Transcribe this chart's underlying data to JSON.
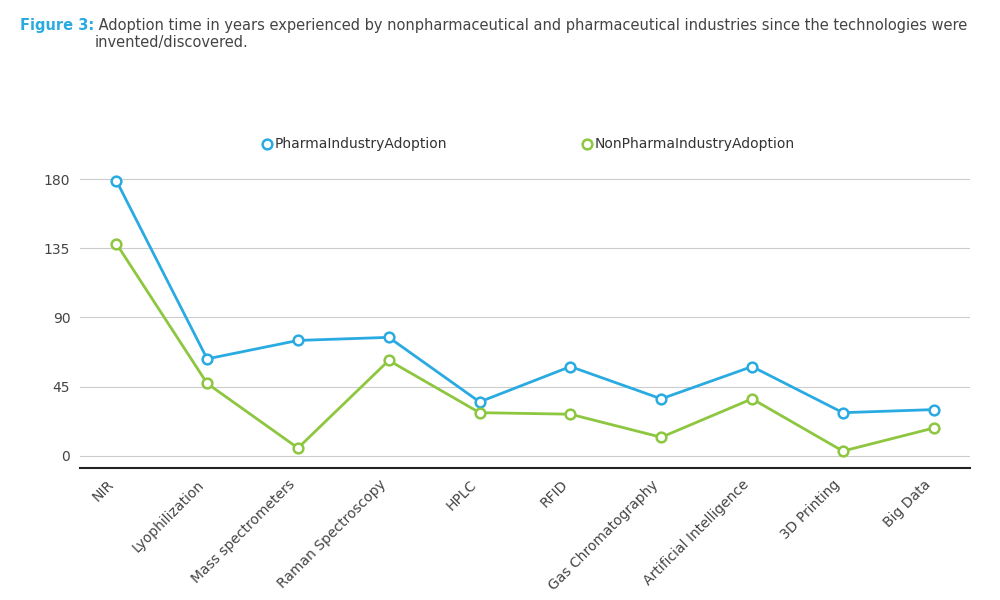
{
  "categories": [
    "NIR",
    "Lyophilization",
    "Mass spectrometers",
    "Raman Spectroscopy",
    "HPLC",
    "RFID",
    "Gas Chromatography",
    "Artificial Intelligence",
    "3D Printing",
    "Big Data"
  ],
  "pharma_values": [
    179,
    63,
    75,
    77,
    35,
    58,
    37,
    58,
    28,
    30
  ],
  "nonpharma_values": [
    138,
    47,
    5,
    62,
    28,
    27,
    12,
    37,
    3,
    18
  ],
  "pharma_color": "#29ABE2",
  "nonpharma_color": "#8DC63F",
  "pharma_label": "PharmaIndustryAdoption",
  "nonpharma_label": "NonPharmaIndustryAdoption",
  "yticks": [
    0,
    45,
    90,
    135,
    180
  ],
  "title_bold": "Figure 3:",
  "title_normal": " Adoption time in years experienced by nonpharmaceutical and pharmaceutical industries since the technologies were\ninvented/discovered.",
  "background_color": "#FFFFFF",
  "grid_color": "#CCCCCC",
  "title_color": "#444444",
  "figure_bold_color": "#29ABE2",
  "title_fontsize": 10.5,
  "tick_fontsize": 10,
  "legend_fontsize": 10
}
